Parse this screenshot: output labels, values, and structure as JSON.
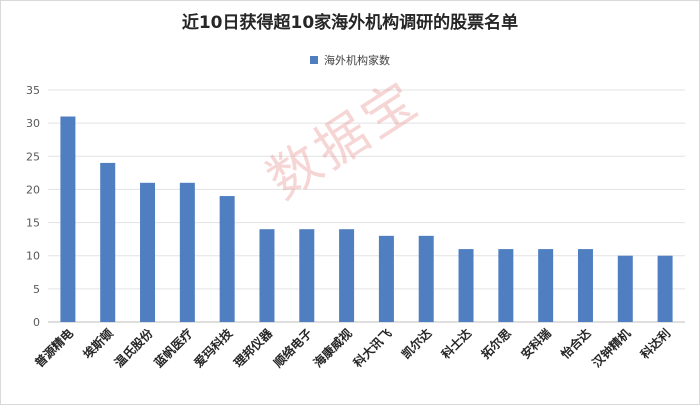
{
  "chart_data": {
    "type": "bar",
    "title": "近10日获得超10家海外机构调研的股票名单",
    "series": [
      {
        "name": "海外机构家数",
        "color": "#4f7fc1",
        "values": [
          31,
          24,
          21,
          21,
          19,
          14,
          14,
          14,
          13,
          13,
          11,
          11,
          11,
          11,
          10,
          10
        ]
      }
    ],
    "categories": [
      "普源精电",
      "埃斯顿",
      "温氏股份",
      "蓝帆医疗",
      "爱玛科技",
      "理邦仪器",
      "顺络电子",
      "海康威视",
      "科大讯飞",
      "凯尔达",
      "科士达",
      "拓尔思",
      "安科瑞",
      "怡合达",
      "汉钟精机",
      "科达利"
    ],
    "yticks": [
      0,
      5,
      10,
      15,
      20,
      25,
      30,
      35
    ],
    "ylim": [
      0,
      35
    ],
    "grid": true,
    "legend_position": "top"
  },
  "watermark": "数据宝"
}
